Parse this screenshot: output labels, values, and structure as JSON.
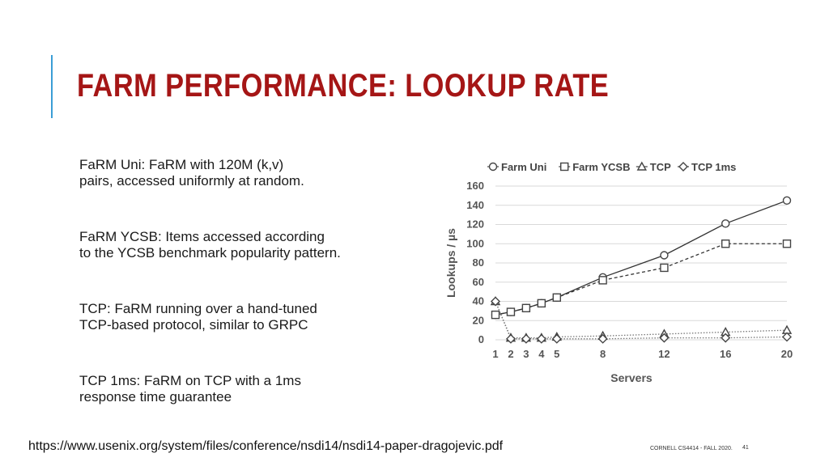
{
  "slide": {
    "title": "FARM PERFORMANCE: LOOKUP RATE",
    "paragraphs": [
      {
        "lines": [
          "FaRM Uni:  FaRM with 120M (k,v)",
          "pairs, accessed uniformly at random."
        ]
      },
      {
        "lines": [
          "FaRM YCSB:  Items accessed according",
          "to the YCSB benchmark popularity pattern."
        ]
      },
      {
        "lines": [
          "TCP:  FaRM running over a hand-tuned",
          "TCP-based protocol, similar to GRPC"
        ]
      },
      {
        "lines": [
          "TCP 1ms:  FaRM on TCP with a 1ms",
          "response time guarantee"
        ]
      }
    ],
    "source_url": "https://www.usenix.org/system/files/conference/nsdi14/nsdi14-paper-dragojevic.pdf",
    "course": "CORNELL CS4414 - FALL 2020.",
    "page_number": "41",
    "accent_color": "#3b9ed6",
    "title_color": "#a51616"
  },
  "chart_data": {
    "type": "line",
    "title": "",
    "xlabel": "Servers",
    "ylabel": "Lookups / µs",
    "x": [
      1,
      2,
      3,
      4,
      5,
      8,
      12,
      16,
      20
    ],
    "x_tick_labels": [
      "1",
      "2",
      "3",
      "4",
      "5",
      "8",
      "12",
      "16",
      "20"
    ],
    "ylim": [
      0,
      160
    ],
    "y_ticks": [
      0,
      20,
      40,
      60,
      80,
      100,
      120,
      140,
      160
    ],
    "grid": true,
    "legend_position": "top",
    "series": [
      {
        "name": "Farm Uni",
        "marker": "circle",
        "style": "solid",
        "values": [
          26,
          29,
          33,
          38,
          44,
          65,
          88,
          121,
          145
        ]
      },
      {
        "name": "Farm YCSB",
        "marker": "square",
        "style": "dashed",
        "values": [
          26,
          29,
          33,
          38,
          44,
          62,
          75,
          100,
          100
        ]
      },
      {
        "name": "TCP",
        "marker": "triangle",
        "style": "dotted",
        "values": [
          40,
          2,
          2,
          2,
          3,
          4,
          6,
          8,
          10
        ]
      },
      {
        "name": "TCP 1ms",
        "marker": "diamond",
        "style": "dotted",
        "values": [
          40,
          1,
          1,
          1,
          1,
          1,
          2,
          2,
          3
        ]
      }
    ]
  }
}
